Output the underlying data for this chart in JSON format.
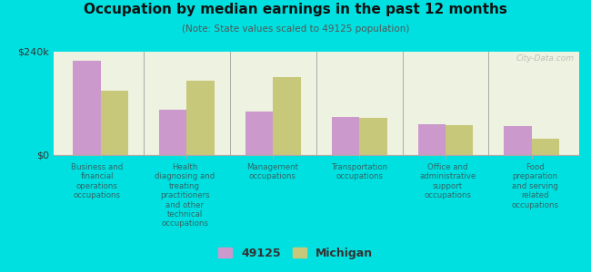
{
  "title": "Occupation by median earnings in the past 12 months",
  "subtitle": "(Note: State values scaled to 49125 population)",
  "categories": [
    "Business and\nfinancial\noperations\noccupations",
    "Health\ndiagnosing and\ntreating\npractitioners\nand other\ntechnical\noccupations",
    "Management\noccupations",
    "Transportation\noccupations",
    "Office and\nadministrative\nsupport\noccupations",
    "Food\npreparation\nand serving\nrelated\noccupations"
  ],
  "values_49125": [
    218000,
    105000,
    100000,
    88000,
    72000,
    68000
  ],
  "values_michigan": [
    150000,
    172000,
    182000,
    86000,
    70000,
    38000
  ],
  "ylim": [
    0,
    240000
  ],
  "ytick_labels": [
    "$0",
    "$240k"
  ],
  "color_49125": "#cc99cc",
  "color_michigan": "#c8c87a",
  "background_color": "#00e0e0",
  "plot_bg": "#eef2e0",
  "watermark": "City-Data.com",
  "legend_label_49125": "49125",
  "legend_label_michigan": "Michigan",
  "bar_width": 0.32
}
